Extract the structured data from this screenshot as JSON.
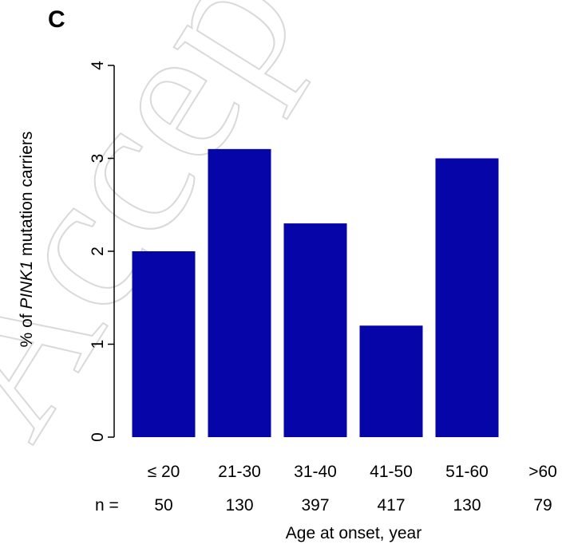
{
  "panel_label": "C",
  "watermark": "Accepted Ar",
  "chart_data": {
    "type": "bar",
    "title": "",
    "ylabel_prefix": "% of ",
    "ylabel_italic": "PINK1",
    "ylabel_suffix": " mutation carriers",
    "xlabel": "Age at onset, year",
    "categories": [
      "≤ 20",
      "21-30",
      "31-40",
      "41-50",
      "51-60",
      ">60"
    ],
    "values": [
      2.0,
      3.1,
      2.3,
      1.2,
      3.0,
      0
    ],
    "n_label": "n =",
    "n_values": [
      "50",
      "130",
      "397",
      "417",
      "130",
      "79"
    ],
    "ylim": [
      0,
      4
    ],
    "yticks": [
      "0",
      "1",
      "2",
      "3",
      "4"
    ],
    "bar_color": "#0505a8",
    "grid": false
  }
}
